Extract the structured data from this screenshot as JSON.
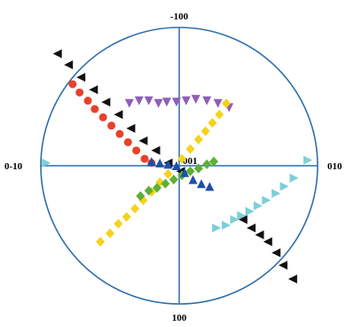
{
  "chart_data": {
    "type": "scatter",
    "projection": "stereographic pole figure",
    "title": "",
    "axis_labels": {
      "top": "-100",
      "bottom": "100",
      "left": "0-10",
      "right": "010",
      "center": "001"
    },
    "axes_range": {
      "x": [
        -1,
        1
      ],
      "y": [
        -1,
        1
      ]
    },
    "grid": false,
    "legend": "none",
    "series": [
      {
        "marker": "circle",
        "color": "#e8412a",
        "points": [
          [
            -0.77,
            0.59
          ],
          [
            -0.72,
            0.53
          ],
          [
            -0.66,
            0.47
          ],
          [
            -0.61,
            0.41
          ],
          [
            -0.55,
            0.35
          ],
          [
            -0.49,
            0.29
          ],
          [
            -0.43,
            0.23
          ],
          [
            -0.37,
            0.17
          ],
          [
            -0.31,
            0.11
          ],
          [
            -0.25,
            0.05
          ],
          [
            -0.2,
            0.02
          ]
        ]
      },
      {
        "marker": "triangle-left",
        "color": "#111111",
        "points": [
          [
            -0.88,
            0.81
          ],
          [
            -0.8,
            0.73
          ],
          [
            -0.71,
            0.64
          ],
          [
            -0.62,
            0.55
          ],
          [
            -0.53,
            0.46
          ],
          [
            -0.44,
            0.37
          ],
          [
            -0.35,
            0.27
          ],
          [
            -0.26,
            0.18
          ],
          [
            -0.17,
            0.11
          ],
          [
            -0.08,
            0.02
          ],
          [
            0.01,
            -0.04
          ]
        ]
      },
      {
        "marker": "triangle-left",
        "color": "#111111",
        "points": [
          [
            0.46,
            -0.39
          ],
          [
            0.52,
            -0.45
          ],
          [
            0.58,
            -0.5
          ],
          [
            0.64,
            -0.55
          ],
          [
            0.7,
            -0.63
          ],
          [
            0.75,
            -0.72
          ],
          [
            0.82,
            -0.82
          ]
        ]
      },
      {
        "marker": "triangle-down",
        "color": "#8e5fb8",
        "points": [
          [
            -0.36,
            0.45
          ],
          [
            -0.29,
            0.47
          ],
          [
            -0.22,
            0.47
          ],
          [
            -0.15,
            0.45
          ],
          [
            -0.09,
            0.46
          ],
          [
            -0.02,
            0.46
          ],
          [
            0.05,
            0.47
          ],
          [
            0.12,
            0.48
          ],
          [
            0.2,
            0.47
          ],
          [
            0.28,
            0.45
          ],
          [
            0.36,
            0.42
          ]
        ]
      },
      {
        "marker": "diamond",
        "color": "#f5d21e",
        "points": [
          [
            -0.57,
            -0.55
          ],
          [
            -0.5,
            -0.49
          ],
          [
            -0.44,
            -0.42
          ],
          [
            -0.38,
            -0.37
          ],
          [
            -0.32,
            -0.31
          ],
          [
            -0.26,
            -0.25
          ],
          [
            -0.2,
            -0.19
          ],
          [
            -0.14,
            -0.12
          ],
          [
            -0.08,
            -0.06
          ],
          [
            0.02,
            0.05
          ],
          [
            0.08,
            0.12
          ],
          [
            0.14,
            0.19
          ],
          [
            0.19,
            0.25
          ],
          [
            0.24,
            0.31
          ],
          [
            0.29,
            0.37
          ],
          [
            0.34,
            0.45
          ]
        ]
      },
      {
        "marker": "diamond",
        "color": "#5cb034",
        "points": [
          [
            -0.28,
            -0.22
          ],
          [
            -0.22,
            -0.18
          ],
          [
            -0.16,
            -0.16
          ],
          [
            -0.1,
            -0.13
          ],
          [
            -0.04,
            -0.1
          ],
          [
            0.02,
            -0.07
          ],
          [
            0.08,
            -0.04
          ],
          [
            0.14,
            -0.02
          ],
          [
            0.2,
            0.01
          ],
          [
            0.25,
            0.03
          ]
        ]
      },
      {
        "marker": "triangle-up",
        "color": "#1f4fa8",
        "points": [
          [
            -0.2,
            0.03
          ],
          [
            -0.14,
            0.02
          ],
          [
            -0.08,
            0.01
          ],
          [
            -0.02,
            0
          ],
          [
            0.04,
            -0.05
          ],
          [
            0.1,
            -0.1
          ],
          [
            0.16,
            -0.13
          ],
          [
            0.22,
            -0.15
          ]
        ]
      },
      {
        "marker": "triangle-right",
        "color": "#7ccfd6",
        "points": [
          [
            -0.96,
            0.02
          ],
          [
            0.93,
            0.04
          ],
          [
            0.83,
            -0.09
          ],
          [
            0.76,
            -0.15
          ],
          [
            0.7,
            -0.2
          ],
          [
            0.63,
            -0.25
          ],
          [
            0.57,
            -0.29
          ],
          [
            0.51,
            -0.33
          ],
          [
            0.45,
            -0.36
          ],
          [
            0.4,
            -0.39
          ],
          [
            0.34,
            -0.43
          ],
          [
            0.27,
            -0.45
          ]
        ]
      }
    ]
  }
}
